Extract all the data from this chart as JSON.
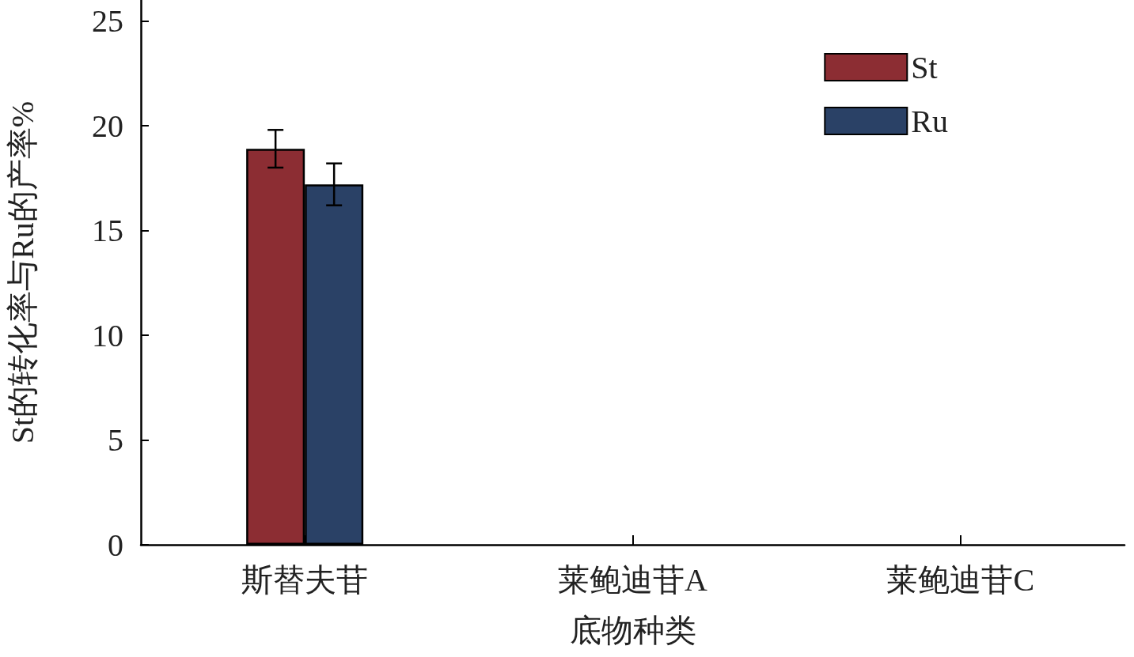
{
  "chart_data": {
    "type": "bar",
    "xlabel": "底物种类",
    "ylabel": "St的转化率与Ru的产率%",
    "categories": [
      "斯替夫苷",
      "莱鲍迪苷A",
      "莱鲍迪苷C"
    ],
    "series": [
      {
        "name": "St",
        "color": "#8c2d33",
        "values": [
          18.9,
          null,
          null
        ],
        "errors": [
          0.9,
          null,
          null
        ]
      },
      {
        "name": "Ru",
        "color": "#2a4166",
        "values": [
          17.2,
          null,
          null
        ],
        "errors": [
          1.0,
          null,
          null
        ]
      }
    ],
    "ylim": [
      0,
      26
    ],
    "yticks": [
      0,
      5,
      10,
      15,
      20,
      25
    ],
    "grid": false,
    "legend": "top right"
  }
}
